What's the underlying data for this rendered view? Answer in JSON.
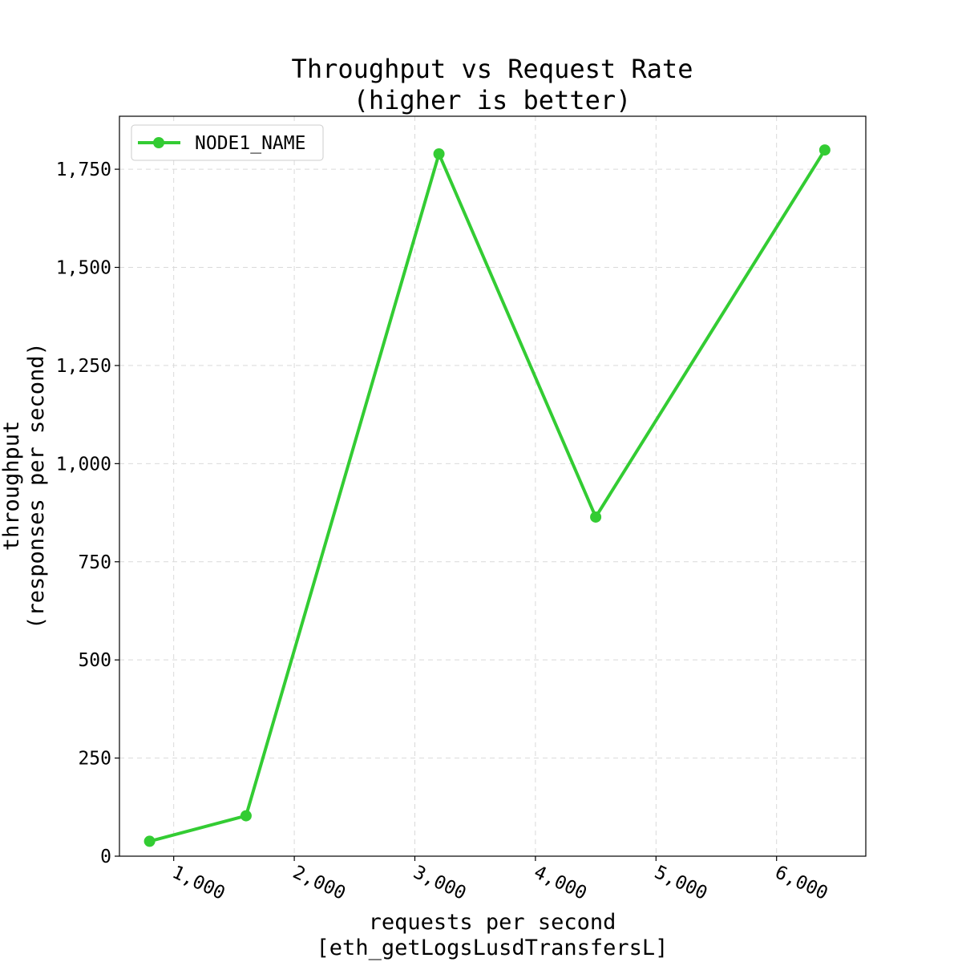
{
  "chart_data": {
    "type": "line",
    "title": [
      "Throughput vs Request Rate",
      "(higher is better)"
    ],
    "xlabel": [
      "requests per second",
      "[eth_getLogsLusdTransfersL]"
    ],
    "ylabel": [
      "throughput",
      "(responses per second)"
    ],
    "xlim": [
      550,
      6740
    ],
    "ylim": [
      0,
      1885
    ],
    "x_ticks": [
      1000,
      2000,
      3000,
      4000,
      5000,
      6000
    ],
    "x_tick_labels": [
      "1,000",
      "2,000",
      "3,000",
      "4,000",
      "5,000",
      "6,000"
    ],
    "y_ticks": [
      0,
      250,
      500,
      750,
      1000,
      1250,
      1500,
      1750
    ],
    "y_tick_labels": [
      "0",
      "250",
      "500",
      "750",
      "1,000",
      "1,250",
      "1,500",
      "1,750"
    ],
    "grid": true,
    "legend_position": "top-left",
    "series": [
      {
        "name": "NODE1_NAME",
        "color": "#33cc33",
        "x": [
          800,
          1600,
          3200,
          4500,
          6400
        ],
        "y": [
          38,
          103,
          1789,
          864,
          1799
        ]
      }
    ]
  }
}
